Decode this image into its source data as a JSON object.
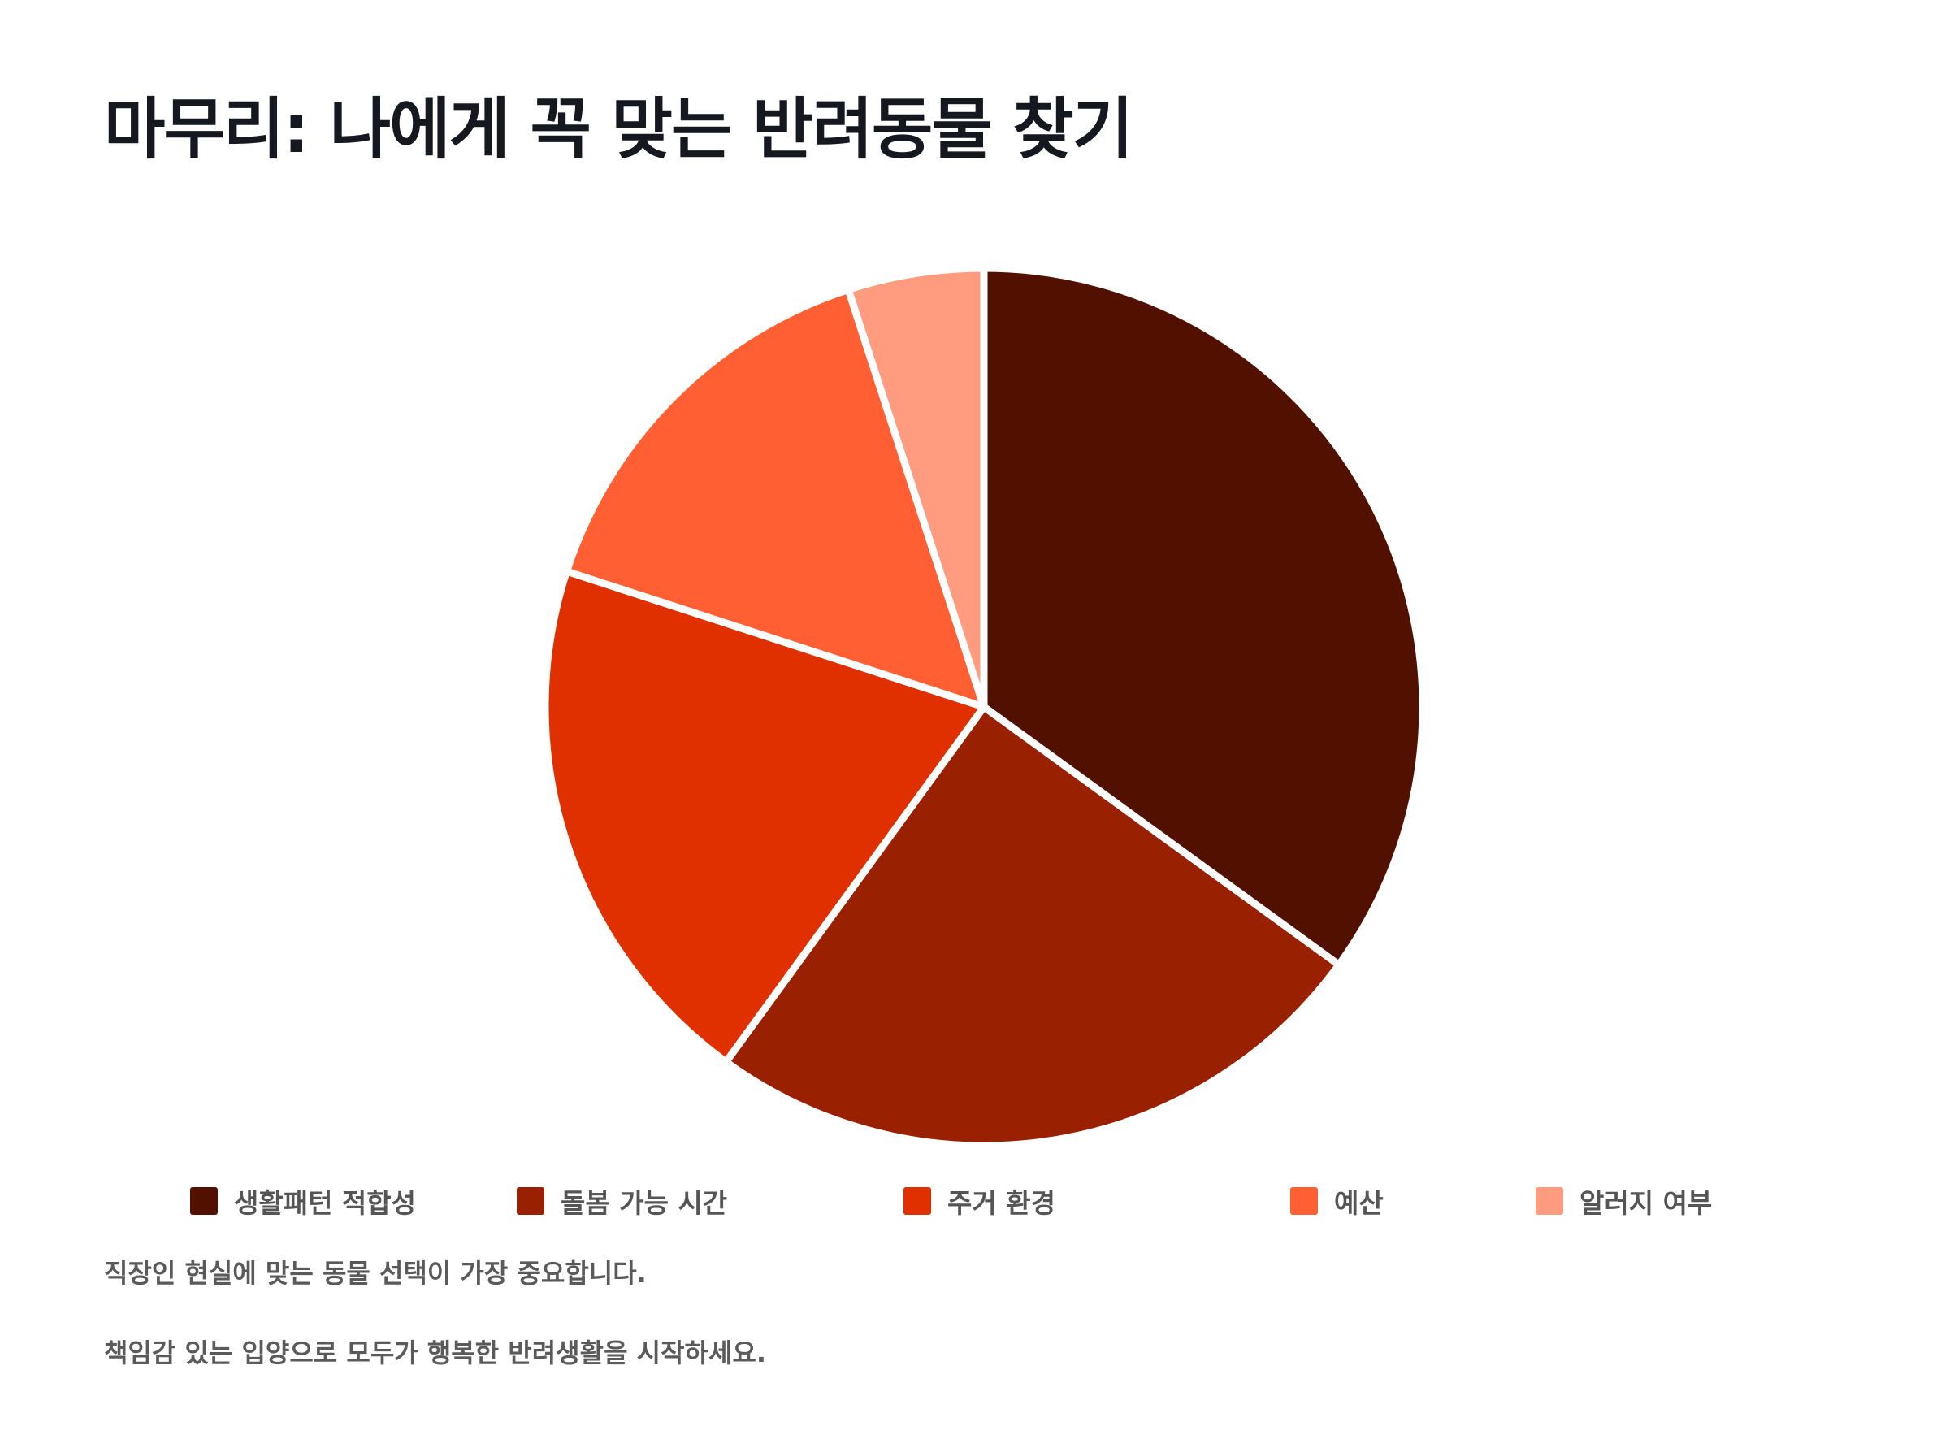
{
  "title": "마무리: 나에게 꼭 맞는 반려동물 찾기",
  "chart_data": {
    "type": "pie",
    "title": "",
    "categories": [
      "생활패턴 적합성",
      "돌봄 가능 시간",
      "주거 환경",
      "예산",
      "알러지 여부"
    ],
    "values": [
      35,
      25,
      20,
      15,
      5
    ],
    "colors": [
      "#521100",
      "#992000",
      "#E03000",
      "#FF5F33",
      "#FF9C80"
    ],
    "start_angle": "12 o'clock",
    "direction": "clockwise",
    "legend_position": "bottom"
  },
  "footer": {
    "line1": "직장인 현실에 맞는 동물 선택이 가장 중요합니다.",
    "line2": "책임감 있는 입양으로 모두가 행복한 반려생활을 시작하세요."
  }
}
